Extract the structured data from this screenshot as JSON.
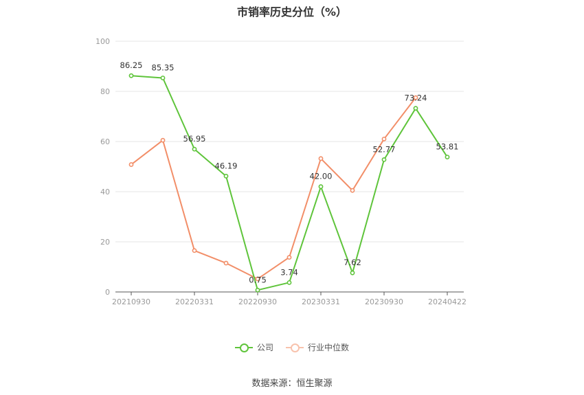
{
  "chart_data": {
    "type": "line",
    "title": "市销率历史分位（%）",
    "x_tick_labels": [
      "20210930",
      "20220331",
      "20220930",
      "20230331",
      "20230930",
      "20240422"
    ],
    "x": [
      "20210930",
      "20211231",
      "20220331",
      "20220630",
      "20220930",
      "20221231",
      "20230331",
      "20230630",
      "20230930",
      "20231231",
      "20240422"
    ],
    "ylim": [
      0,
      100
    ],
    "yticks": [
      0,
      20,
      40,
      60,
      80,
      100
    ],
    "grid": true,
    "legend_position": "bottom",
    "series": [
      {
        "name": "公司",
        "color": "#5ec43a",
        "values": [
          86.25,
          85.35,
          56.95,
          46.19,
          0.75,
          3.74,
          42.0,
          7.62,
          52.77,
          73.24,
          53.81
        ],
        "labels": [
          "86.25",
          "85.35",
          "56.95",
          "46.19",
          "0.75",
          "3.74",
          "42.00",
          "7.62",
          "52.77",
          "73.24",
          "53.81"
        ]
      },
      {
        "name": "行业中位数",
        "color": "#f28e68",
        "values": [
          50.8,
          60.5,
          16.5,
          11.5,
          5.2,
          13.8,
          53.2,
          40.5,
          61.0,
          77.5,
          null
        ]
      }
    ]
  },
  "source_text": "数据来源：恒生聚源"
}
